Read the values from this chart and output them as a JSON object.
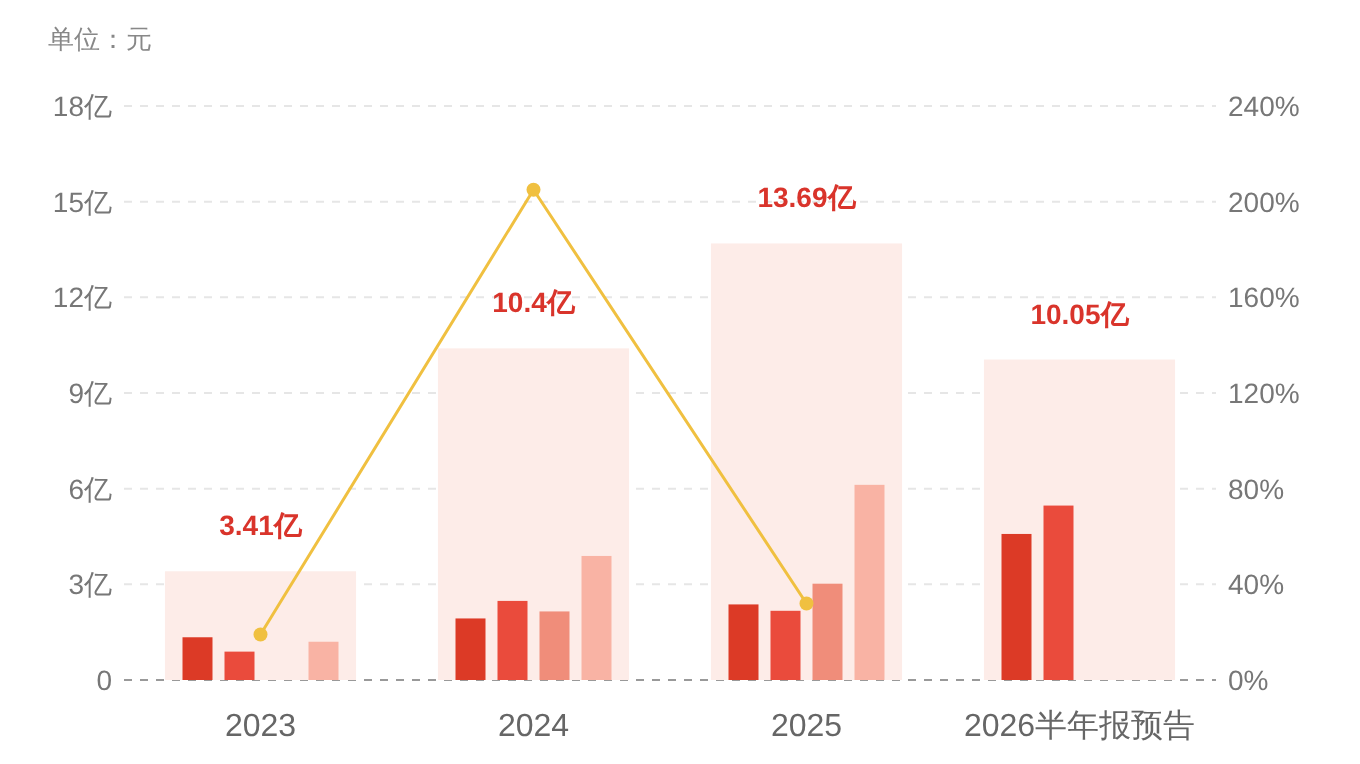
{
  "chart_data": {
    "type": "bar",
    "ylabel": "单位：元",
    "categories": [
      "2023",
      "2024",
      "2025",
      "2026半年报预告"
    ],
    "series": [
      {
        "color": "#fdece8",
        "values": [
          3.41,
          10.4,
          13.69,
          10.05
        ],
        "value_labels": [
          "3.41亿",
          "10.4亿",
          "13.69亿",
          "10.05亿"
        ]
      },
      {
        "color": "#dc3a26",
        "values": [
          1.34,
          1.93,
          2.37,
          4.58
        ]
      },
      {
        "color": "#ea4b3c",
        "values": [
          0.89,
          2.48,
          2.17,
          5.47
        ]
      },
      {
        "color": "#f08d7a",
        "values": [
          0,
          2.15,
          3.02,
          null
        ]
      },
      {
        "color": "#f9b3a4",
        "values": [
          1.2,
          3.89,
          6.12,
          null
        ]
      },
      {
        "type": "line",
        "axis": "y2",
        "color": "#f0c040",
        "marker": "circle",
        "values": [
          19,
          205,
          32,
          null
        ]
      }
    ],
    "ylim": [
      0,
      18
    ],
    "yticks": [
      0,
      {
        "value": 3,
        "label": "3亿"
      },
      {
        "value": 6,
        "label": "6亿"
      },
      {
        "value": 9,
        "label": "9亿"
      },
      {
        "value": 12,
        "label": "12亿"
      },
      {
        "value": 15,
        "label": "15亿"
      },
      {
        "value": 18,
        "label": "18亿"
      }
    ],
    "y2lim": [
      0,
      240
    ],
    "y2ticks": [
      {
        "value": 0,
        "label": "0%"
      },
      {
        "value": 40,
        "label": "40%"
      },
      {
        "value": 80,
        "label": "80%"
      },
      {
        "value": 120,
        "label": "120%"
      },
      {
        "value": 160,
        "label": "160%"
      },
      {
        "value": 200,
        "label": "200%"
      },
      {
        "value": 240,
        "label": "240%"
      }
    ],
    "grid": "y"
  }
}
